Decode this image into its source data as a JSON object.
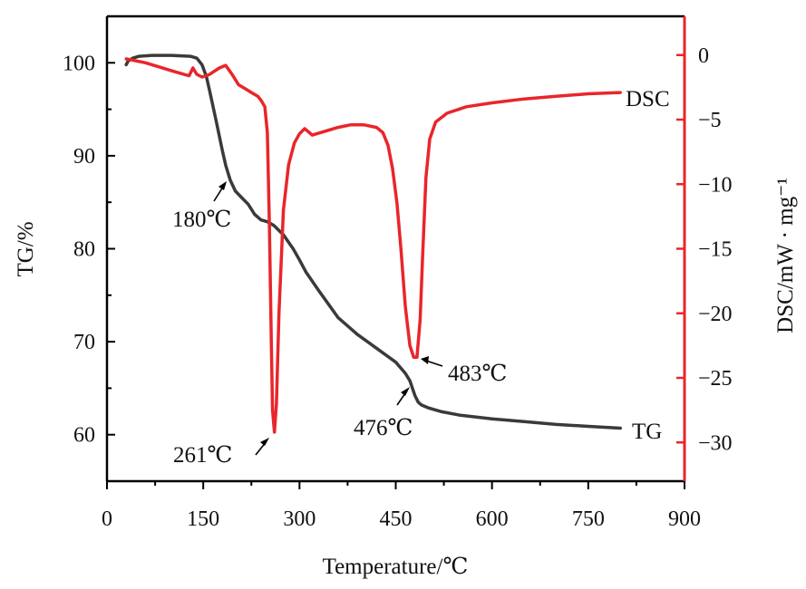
{
  "chart_data": {
    "type": "line",
    "xlabel": "Temperature/℃",
    "ylabel": "TG/%",
    "y2label": "DSC/mW · mg⁻¹",
    "xlim": [
      0,
      900
    ],
    "ylim": [
      55,
      105
    ],
    "y2lim": [
      -33,
      3
    ],
    "x_ticks": [
      "0",
      "150",
      "300",
      "450",
      "600",
      "750",
      "900"
    ],
    "y_ticks": [
      "60",
      "70",
      "80",
      "90",
      "100"
    ],
    "y2_ticks": [
      "0",
      "-5",
      "-10",
      "-15",
      "-20",
      "-25",
      "-30"
    ],
    "grid": false,
    "colors": {
      "TG": "#3a3a3a",
      "DSC": "#e8262b",
      "axis_right": "#e8262b",
      "axis": "#000000"
    },
    "series": [
      {
        "name": "TG",
        "axis": "left",
        "x": [
          30,
          33,
          40,
          50,
          70,
          100,
          130,
          140,
          148,
          155,
          160,
          170,
          180,
          185,
          192,
          200,
          210,
          220,
          230,
          240,
          250,
          260,
          275,
          290,
          300,
          310,
          330,
          360,
          390,
          420,
          450,
          465,
          472,
          476,
          480,
          485,
          490,
          500,
          520,
          550,
          600,
          650,
          700,
          750,
          800
        ],
        "y": [
          99.8,
          100.2,
          100.5,
          100.7,
          100.8,
          100.8,
          100.7,
          100.5,
          99.8,
          98.5,
          97.0,
          93.8,
          90.5,
          89.0,
          87.4,
          86.2,
          85.5,
          84.8,
          83.7,
          83.1,
          82.9,
          82.5,
          81.5,
          80.0,
          78.8,
          77.5,
          75.5,
          72.6,
          70.8,
          69.3,
          67.8,
          66.6,
          65.8,
          65.0,
          64.2,
          63.5,
          63.2,
          62.9,
          62.5,
          62.1,
          61.7,
          61.4,
          61.1,
          60.9,
          60.7
        ]
      },
      {
        "name": "DSC",
        "axis": "right",
        "x": [
          30,
          40,
          60,
          80,
          100,
          120,
          128,
          134,
          140,
          148,
          160,
          175,
          185,
          195,
          205,
          215,
          225,
          235,
          240,
          246,
          250,
          253,
          256,
          258,
          261,
          264,
          268,
          275,
          283,
          292,
          300,
          308,
          320,
          340,
          360,
          380,
          400,
          420,
          430,
          438,
          445,
          452,
          458,
          465,
          472,
          478,
          483,
          488,
          492,
          497,
          503,
          512,
          530,
          560,
          600,
          650,
          700,
          750,
          800
        ],
        "y": [
          -0.3,
          -0.4,
          -0.6,
          -0.9,
          -1.2,
          -1.5,
          -1.6,
          -1.0,
          -1.5,
          -1.7,
          -1.5,
          -1.0,
          -0.8,
          -1.5,
          -2.3,
          -2.6,
          -2.9,
          -3.2,
          -3.5,
          -4.0,
          -6.0,
          -13.0,
          -22.0,
          -27.5,
          -29.2,
          -27.0,
          -20.0,
          -12.0,
          -8.5,
          -6.8,
          -6.1,
          -5.7,
          -6.2,
          -5.9,
          -5.6,
          -5.4,
          -5.4,
          -5.6,
          -6.0,
          -7.0,
          -8.8,
          -11.5,
          -15.0,
          -19.5,
          -22.5,
          -23.4,
          -23.4,
          -20.5,
          -15.5,
          -9.5,
          -6.5,
          -5.2,
          -4.5,
          -4.0,
          -3.7,
          -3.4,
          -3.2,
          -3.0,
          -2.9
        ]
      }
    ],
    "series_labels": {
      "tg": "TG",
      "dsc": "DSC"
    },
    "annotations": [
      "180℃",
      "261℃",
      "476℃",
      "483℃"
    ]
  }
}
